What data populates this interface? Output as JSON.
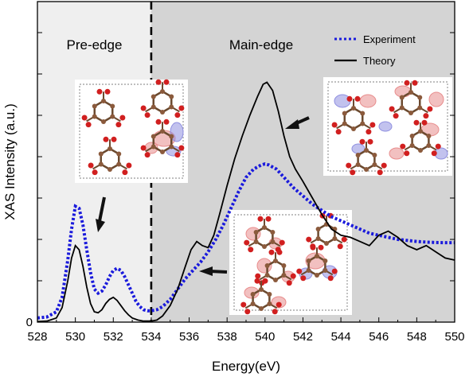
{
  "chart_data": {
    "type": "line",
    "title": "",
    "xlabel": "Energy(eV)",
    "ylabel": "XAS Intensity (a.u.)",
    "xlim": [
      528,
      550
    ],
    "ylim": [
      0,
      1.2
    ],
    "x_ticks": [
      "528",
      "530",
      "532",
      "534",
      "536",
      "538",
      "540",
      "542",
      "544",
      "546",
      "548",
      "550"
    ],
    "y_ticks": [
      "0"
    ],
    "grid": false,
    "legend_position": "top-right",
    "regions": [
      {
        "label": "Pre-edge",
        "x_range": [
          528,
          534
        ],
        "color": "#efefef"
      },
      {
        "label": "Main-edge",
        "x_range": [
          534,
          550
        ],
        "color": "#d4d4d4"
      }
    ],
    "divider_x": 534,
    "series": [
      {
        "name": "Experiment",
        "style": "dotted",
        "color": "#1a1adc",
        "x": [
          528,
          528.5,
          529,
          529.3,
          529.6,
          529.8,
          530,
          530.2,
          530.4,
          530.6,
          530.8,
          531,
          531.2,
          531.4,
          531.6,
          531.8,
          532,
          532.2,
          532.4,
          532.6,
          532.8,
          533,
          533.2,
          533.4,
          533.6,
          533.8,
          534,
          534.3,
          534.6,
          535,
          535.4,
          535.8,
          536.2,
          536.6,
          537,
          537.4,
          537.8,
          538.2,
          538.6,
          539,
          539.4,
          539.8,
          540,
          540.2,
          540.6,
          541,
          541.5,
          542,
          542.5,
          543,
          543.5,
          544,
          544.5,
          545,
          545.5,
          546,
          546.5,
          547,
          547.5,
          548,
          548.5,
          549,
          549.5,
          550
        ],
        "y": [
          0.02,
          0.025,
          0.05,
          0.12,
          0.3,
          0.45,
          0.56,
          0.55,
          0.47,
          0.35,
          0.24,
          0.16,
          0.14,
          0.15,
          0.18,
          0.22,
          0.25,
          0.26,
          0.25,
          0.22,
          0.18,
          0.14,
          0.1,
          0.075,
          0.06,
          0.055,
          0.055,
          0.06,
          0.075,
          0.11,
          0.16,
          0.21,
          0.25,
          0.29,
          0.34,
          0.4,
          0.47,
          0.55,
          0.63,
          0.7,
          0.74,
          0.76,
          0.765,
          0.76,
          0.74,
          0.7,
          0.65,
          0.61,
          0.57,
          0.54,
          0.51,
          0.49,
          0.47,
          0.45,
          0.43,
          0.42,
          0.41,
          0.4,
          0.395,
          0.39,
          0.387,
          0.385,
          0.384,
          0.384
        ]
      },
      {
        "name": "Theory",
        "style": "solid",
        "color": "#000000",
        "x": [
          528,
          528.5,
          529,
          529.3,
          529.6,
          529.8,
          530,
          530.2,
          530.4,
          530.6,
          530.8,
          531,
          531.2,
          531.4,
          531.6,
          531.8,
          532,
          532.2,
          532.4,
          532.6,
          532.8,
          533,
          533.3,
          533.6,
          534,
          534.3,
          534.6,
          535,
          535.4,
          535.8,
          536.1,
          536.4,
          536.7,
          537,
          537.3,
          537.6,
          538,
          538.4,
          538.8,
          539.2,
          539.6,
          539.9,
          540.1,
          540.4,
          540.7,
          541,
          541.3,
          541.6,
          542,
          542.5,
          543,
          543.5,
          544,
          544.5,
          545,
          545.5,
          546,
          546.5,
          547,
          547.5,
          548,
          548.5,
          549,
          549.5,
          550
        ],
        "y": [
          0.003,
          0.005,
          0.02,
          0.07,
          0.2,
          0.31,
          0.37,
          0.35,
          0.27,
          0.17,
          0.09,
          0.05,
          0.045,
          0.06,
          0.09,
          0.11,
          0.12,
          0.105,
          0.08,
          0.055,
          0.035,
          0.02,
          0.01,
          0.005,
          0.005,
          0.01,
          0.03,
          0.08,
          0.16,
          0.27,
          0.35,
          0.39,
          0.37,
          0.36,
          0.42,
          0.52,
          0.66,
          0.79,
          0.9,
          1.0,
          1.09,
          1.15,
          1.16,
          1.12,
          1.02,
          0.9,
          0.8,
          0.74,
          0.68,
          0.6,
          0.52,
          0.45,
          0.42,
          0.41,
          0.39,
          0.37,
          0.42,
          0.44,
          0.41,
          0.37,
          0.35,
          0.37,
          0.34,
          0.31,
          0.3
        ]
      }
    ]
  }
}
